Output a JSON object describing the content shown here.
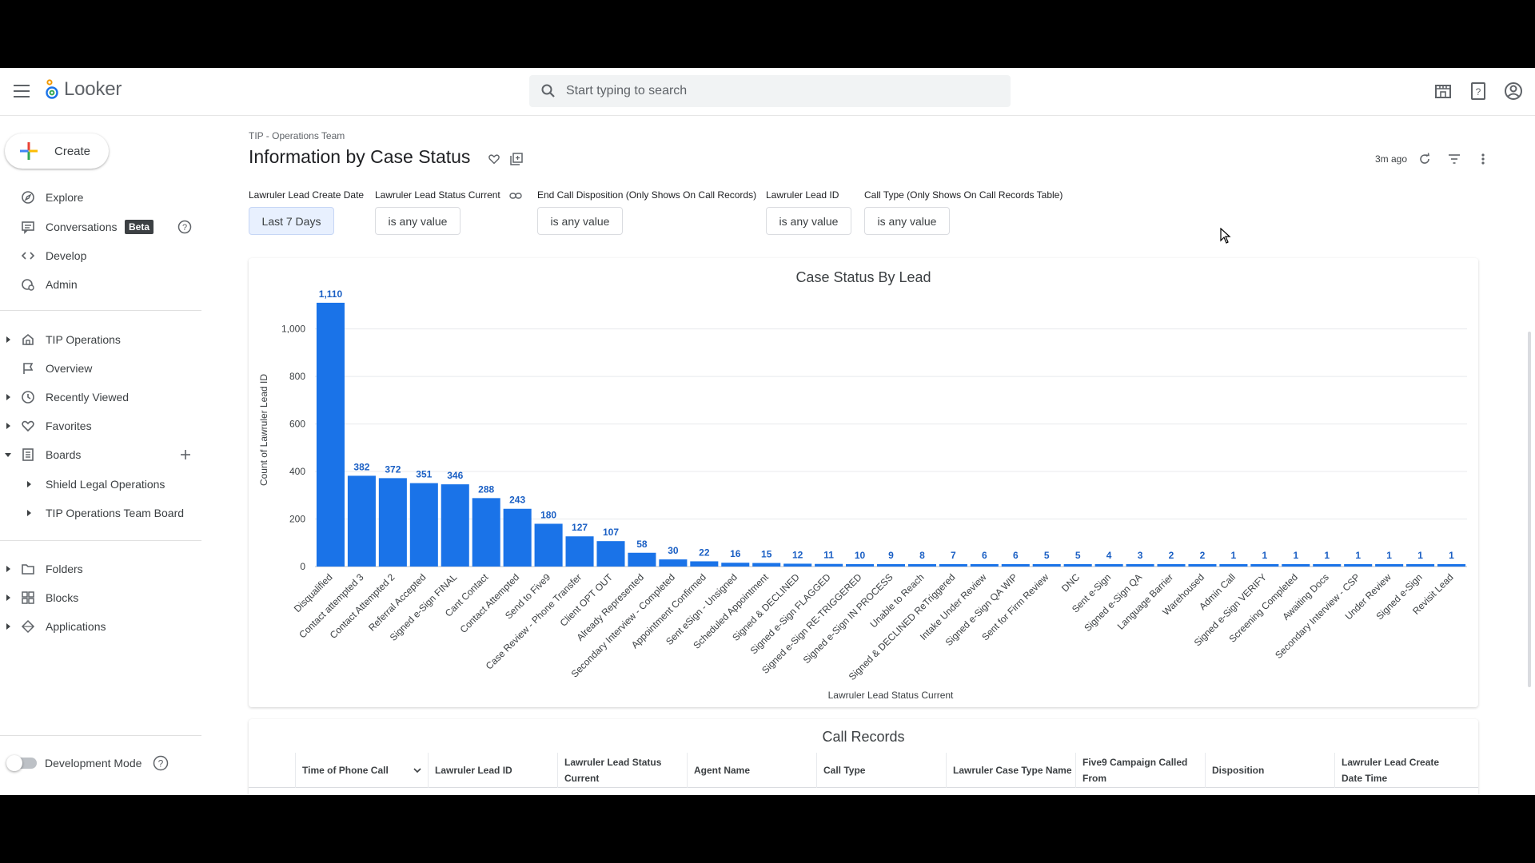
{
  "app": {
    "name": "Looker"
  },
  "search": {
    "placeholder": "Start typing to search"
  },
  "sidebar": {
    "create_label": "Create",
    "primary": [
      {
        "label": "Explore",
        "icon": "compass-icon"
      },
      {
        "label": "Conversations",
        "badge": "Beta",
        "icon": "chat-icon"
      },
      {
        "label": "Develop",
        "icon": "code-icon"
      },
      {
        "label": "Admin",
        "icon": "admin-icon"
      }
    ],
    "secondary": [
      {
        "label": "TIP Operations",
        "icon": "home-icon"
      },
      {
        "label": "Overview",
        "icon": "flag-icon"
      },
      {
        "label": "Recently Viewed",
        "icon": "clock-icon"
      },
      {
        "label": "Favorites",
        "icon": "heart-icon"
      },
      {
        "label": "Boards",
        "icon": "board-icon"
      },
      {
        "label": "Shield Legal Operations"
      },
      {
        "label": "TIP Operations Team Board"
      }
    ],
    "tertiary": [
      {
        "label": "Folders",
        "icon": "folder-icon"
      },
      {
        "label": "Blocks",
        "icon": "blocks-icon"
      },
      {
        "label": "Applications",
        "icon": "apps-icon"
      }
    ],
    "dev_mode_label": "Development Mode"
  },
  "page": {
    "breadcrumb": "TIP - Operations Team",
    "title": "Information by Case Status",
    "last_updated": "3m ago"
  },
  "filters": [
    {
      "label": "Lawruler Lead Create Date",
      "value": "Last 7 Days"
    },
    {
      "label": "Lawruler Lead Status Current",
      "value": "is any value"
    },
    {
      "label": "End Call Disposition (Only Shows On Call Records)",
      "value": "is any value"
    },
    {
      "label": "Lawruler Lead ID",
      "value": "is any value"
    },
    {
      "label": "Call Type (Only Shows On Call Records Table)",
      "value": "is any value"
    }
  ],
  "chart_data": {
    "type": "bar",
    "title": "Case Status By Lead",
    "xlabel": "Lawruler Lead Status Current",
    "ylabel": "Count of Lawruler Lead ID",
    "ylim": [
      0,
      1150
    ],
    "yticks": [
      0,
      200,
      400,
      600,
      800,
      1000
    ],
    "ytick_labels": [
      "0",
      "200",
      "400",
      "600",
      "800",
      "1,000"
    ],
    "grid": true,
    "bar_color": "#1a73e8",
    "label_color": "#1a5fc4",
    "categories": [
      "Disqualified",
      "Contact attempted 3",
      "Contact Attempted 2",
      "Referral Accepted",
      "Signed e-Sign FINAL",
      "Cant Contact",
      "Contact Attempted",
      "Send to Five9",
      "Case Review - Phone Transfer",
      "Client OPT OUT",
      "Already Represented",
      "Secondary Interview - Completed",
      "Appointment Confirmed",
      "Sent eSign - Unsigned",
      "Scheduled Appointment",
      "Signed & DECLINED",
      "Signed e-Sign FLAGGED",
      "Signed e-Sign RE-TRIGGERED",
      "Signed e-Sign IN PROCESS",
      "Unable to Reach",
      "Signed & DECLINED ReTriggered",
      "Intake Under Review",
      "Signed e-Sign QA WIP",
      "Sent for Firm Review",
      "DNC",
      "Sent e-Sign",
      "Signed e-Sign QA",
      "Language Barrier",
      "Warehoused",
      "Admin Call",
      "Signed e-Sign VERIFY",
      "Screening Completed",
      "Awaiting Docs",
      "Secondary Interview - CSP",
      "Under Review",
      "Signed e-Sign",
      "Revisit Lead"
    ],
    "values": [
      1110,
      382,
      372,
      351,
      346,
      288,
      243,
      180,
      127,
      107,
      58,
      30,
      22,
      16,
      15,
      12,
      11,
      10,
      9,
      8,
      7,
      6,
      6,
      5,
      5,
      4,
      3,
      2,
      2,
      1,
      1,
      1,
      1,
      1,
      1,
      1,
      1
    ],
    "value_labels": [
      "1,110",
      "382",
      "372",
      "351",
      "346",
      "288",
      "243",
      "180",
      "127",
      "107",
      "58",
      "30",
      "22",
      "16",
      "15",
      "12",
      "11",
      "10",
      "9",
      "8",
      "7",
      "6",
      "6",
      "5",
      "5",
      "4",
      "3",
      "2",
      "2",
      "1",
      "1",
      "1",
      "1",
      "1",
      "1",
      "1",
      "1"
    ]
  },
  "table": {
    "title": "Call Records",
    "columns": [
      "Time of Phone Call",
      "Lawruler Lead ID",
      "Lawruler Lead Status Current",
      "Agent Name",
      "Call Type",
      "Lawruler Case Type Name",
      "Five9 Campaign Called From",
      "Disposition",
      "Lawruler Lead Create Date Time"
    ]
  },
  "colors": {
    "accent": "#1a73e8",
    "background": "#ffffff"
  }
}
